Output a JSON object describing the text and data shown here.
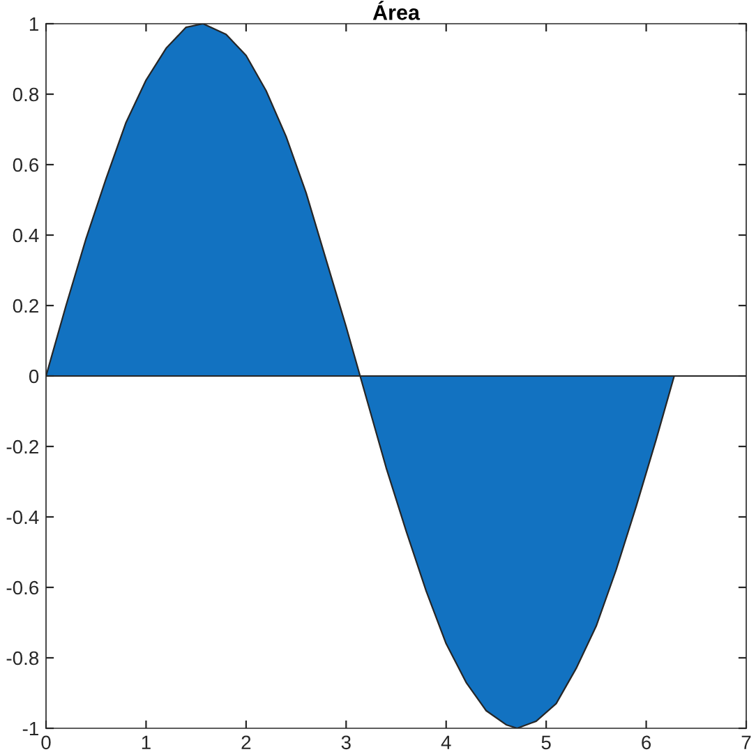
{
  "chart_data": {
    "type": "area",
    "title": "Área",
    "x": [
      0,
      0.2,
      0.4,
      0.6,
      0.8,
      1.0,
      1.2,
      1.4,
      1.57,
      1.8,
      2.0,
      2.2,
      2.4,
      2.6,
      2.8,
      3.0,
      3.14,
      3.4,
      3.6,
      3.8,
      4.0,
      4.2,
      4.4,
      4.6,
      4.71,
      4.9,
      5.1,
      5.3,
      5.5,
      5.7,
      5.9,
      6.1,
      6.28
    ],
    "series": [
      {
        "color": "#1272c1",
        "values": [
          0,
          0.2,
          0.39,
          0.56,
          0.72,
          0.84,
          0.93,
          0.99,
          1.0,
          0.97,
          0.91,
          0.81,
          0.68,
          0.52,
          0.33,
          0.14,
          0,
          -0.26,
          -0.44,
          -0.61,
          -0.76,
          -0.87,
          -0.95,
          -0.99,
          -1.0,
          -0.98,
          -0.93,
          -0.83,
          -0.71,
          -0.55,
          -0.37,
          -0.18,
          0
        ]
      }
    ],
    "xlim": [
      0,
      7
    ],
    "ylim": [
      -1,
      1
    ],
    "xticks": [
      0,
      1,
      2,
      3,
      4,
      5,
      6,
      7
    ],
    "yticks": [
      {
        "value": -1,
        "label": "-1"
      },
      {
        "value": -0.8,
        "label": "-0.8"
      },
      {
        "value": -0.6,
        "label": "-0.6"
      },
      {
        "value": -0.4,
        "label": "-0.4"
      },
      {
        "value": -0.2,
        "label": "-0.2"
      },
      0,
      0.2,
      0.4,
      0.6,
      0.8,
      1
    ],
    "ref_lines": [
      {
        "axis": "y",
        "value": 0,
        "color": "#262626"
      }
    ],
    "grid": false,
    "legend": false
  }
}
